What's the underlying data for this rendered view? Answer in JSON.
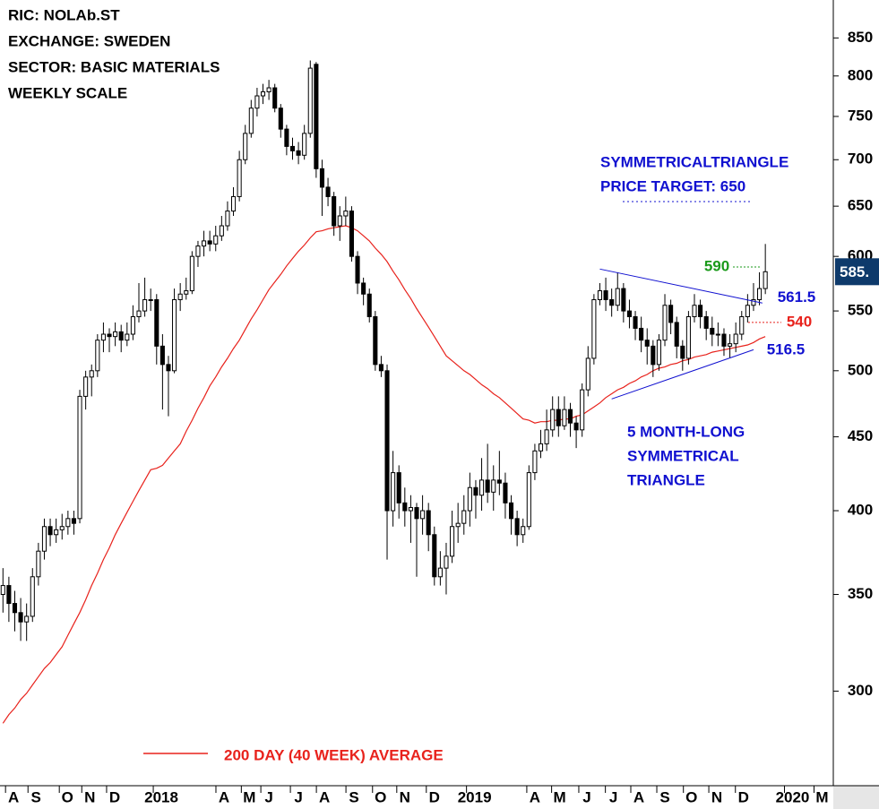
{
  "chart_data": {
    "type": "candlestick",
    "info": [
      "RIC: NOLAb.ST",
      "EXCHANGE: SWEDEN",
      "SECTOR: BASIC MATERIALS",
      "WEEKLY SCALE"
    ],
    "log_scale": true,
    "ylim": [
      258,
      903
    ],
    "yticks": [
      300,
      350,
      400,
      450,
      500,
      550,
      600,
      650,
      700,
      750,
      800,
      850
    ],
    "xlim": [
      -0.5,
      140.5
    ],
    "xticks": [
      {
        "value": 1.8,
        "label": "A"
      },
      {
        "value": 5.6,
        "label": "S"
      },
      {
        "value": 10.9,
        "label": "O"
      },
      {
        "value": 14.7,
        "label": "N"
      },
      {
        "value": 18.9,
        "label": "D"
      },
      {
        "value": 26.8,
        "label": "2018"
      },
      {
        "value": 37.4,
        "label": "A"
      },
      {
        "value": 41.7,
        "label": "M"
      },
      {
        "value": 45,
        "label": "J"
      },
      {
        "value": 50,
        "label": "J"
      },
      {
        "value": 54.4,
        "label": "A"
      },
      {
        "value": 59.4,
        "label": "S"
      },
      {
        "value": 63.9,
        "label": "O"
      },
      {
        "value": 68,
        "label": "N"
      },
      {
        "value": 73,
        "label": "D"
      },
      {
        "value": 79.8,
        "label": "2019"
      },
      {
        "value": 90,
        "label": "A"
      },
      {
        "value": 94.2,
        "label": "M"
      },
      {
        "value": 98.8,
        "label": "J"
      },
      {
        "value": 103.3,
        "label": "J"
      },
      {
        "value": 107.6,
        "label": "A"
      },
      {
        "value": 112,
        "label": "S"
      },
      {
        "value": 116.5,
        "label": "O"
      },
      {
        "value": 120.8,
        "label": "N"
      },
      {
        "value": 125.3,
        "label": "D"
      },
      {
        "value": 133.6,
        "label": "2020"
      },
      {
        "value": 138.6,
        "label": "M"
      }
    ],
    "ohlc": [
      [
        350,
        365,
        340,
        355
      ],
      [
        355,
        360,
        335,
        345
      ],
      [
        345,
        352,
        330,
        340
      ],
      [
        340,
        348,
        325,
        335
      ],
      [
        335,
        345,
        325,
        338
      ],
      [
        338,
        365,
        335,
        360
      ],
      [
        360,
        380,
        355,
        375
      ],
      [
        375,
        395,
        370,
        390
      ],
      [
        390,
        395,
        378,
        385
      ],
      [
        385,
        395,
        380,
        388
      ],
      [
        388,
        398,
        382,
        390
      ],
      [
        390,
        400,
        385,
        395
      ],
      [
        395,
        400,
        385,
        392
      ],
      [
        395,
        485,
        392,
        480
      ],
      [
        480,
        500,
        470,
        495
      ],
      [
        495,
        505,
        480,
        500
      ],
      [
        500,
        530,
        495,
        525
      ],
      [
        525,
        540,
        515,
        530
      ],
      [
        530,
        535,
        515,
        528
      ],
      [
        528,
        540,
        520,
        532
      ],
      [
        532,
        538,
        515,
        525
      ],
      [
        525,
        540,
        520,
        530
      ],
      [
        530,
        555,
        525,
        545
      ],
      [
        545,
        575,
        540,
        550
      ],
      [
        550,
        580,
        545,
        560
      ],
      [
        560,
        570,
        550,
        560
      ],
      [
        560,
        565,
        505,
        520
      ],
      [
        520,
        530,
        470,
        505
      ],
      [
        505,
        512,
        465,
        500
      ],
      [
        500,
        570,
        498,
        560
      ],
      [
        560,
        575,
        550,
        565
      ],
      [
        565,
        580,
        560,
        568
      ],
      [
        568,
        605,
        565,
        600
      ],
      [
        600,
        615,
        590,
        610
      ],
      [
        610,
        625,
        600,
        615
      ],
      [
        615,
        625,
        605,
        612
      ],
      [
        612,
        630,
        605,
        620
      ],
      [
        620,
        640,
        615,
        630
      ],
      [
        630,
        655,
        625,
        645
      ],
      [
        645,
        670,
        640,
        660
      ],
      [
        660,
        710,
        655,
        700
      ],
      [
        700,
        740,
        695,
        730
      ],
      [
        730,
        770,
        725,
        760
      ],
      [
        760,
        785,
        750,
        775
      ],
      [
        775,
        790,
        765,
        780
      ],
      [
        780,
        795,
        770,
        785
      ],
      [
        785,
        790,
        755,
        760
      ],
      [
        760,
        765,
        725,
        735
      ],
      [
        735,
        740,
        705,
        715
      ],
      [
        715,
        725,
        700,
        710
      ],
      [
        710,
        720,
        695,
        705
      ],
      [
        705,
        740,
        700,
        730
      ],
      [
        730,
        820,
        725,
        810
      ],
      [
        815,
        818,
        680,
        690
      ],
      [
        690,
        700,
        640,
        670
      ],
      [
        670,
        680,
        650,
        660
      ],
      [
        660,
        665,
        620,
        630
      ],
      [
        630,
        650,
        615,
        640
      ],
      [
        640,
        660,
        630,
        645
      ],
      [
        645,
        650,
        595,
        600
      ],
      [
        600,
        605,
        565,
        575
      ],
      [
        575,
        580,
        555,
        565
      ],
      [
        565,
        570,
        540,
        545
      ],
      [
        545,
        550,
        500,
        505
      ],
      [
        505,
        512,
        495,
        500
      ],
      [
        500,
        505,
        370,
        400
      ],
      [
        400,
        440,
        390,
        425
      ],
      [
        425,
        430,
        395,
        405
      ],
      [
        405,
        415,
        390,
        400
      ],
      [
        400,
        410,
        380,
        402
      ],
      [
        402,
        405,
        360,
        395
      ],
      [
        395,
        410,
        385,
        400
      ],
      [
        400,
        405,
        375,
        385
      ],
      [
        385,
        390,
        355,
        360
      ],
      [
        360,
        375,
        355,
        365
      ],
      [
        365,
        380,
        350,
        372
      ],
      [
        372,
        400,
        368,
        390
      ],
      [
        390,
        405,
        380,
        392
      ],
      [
        392,
        410,
        385,
        400
      ],
      [
        400,
        425,
        390,
        415
      ],
      [
        415,
        420,
        395,
        410
      ],
      [
        410,
        435,
        400,
        420
      ],
      [
        420,
        445,
        405,
        412
      ],
      [
        412,
        430,
        400,
        420
      ],
      [
        420,
        440,
        410,
        418
      ],
      [
        418,
        425,
        395,
        405
      ],
      [
        405,
        410,
        385,
        395
      ],
      [
        395,
        400,
        378,
        385
      ],
      [
        385,
        395,
        380,
        390
      ],
      [
        390,
        430,
        388,
        425
      ],
      [
        425,
        445,
        420,
        440
      ],
      [
        440,
        455,
        435,
        445
      ],
      [
        445,
        470,
        440,
        455
      ],
      [
        455,
        480,
        450,
        470
      ],
      [
        470,
        480,
        450,
        458
      ],
      [
        458,
        480,
        455,
        470
      ],
      [
        470,
        475,
        450,
        460
      ],
      [
        460,
        465,
        442,
        455
      ],
      [
        455,
        490,
        450,
        485
      ],
      [
        485,
        520,
        480,
        510
      ],
      [
        510,
        565,
        505,
        560
      ],
      [
        560,
        575,
        555,
        568
      ],
      [
        568,
        580,
        550,
        560
      ],
      [
        560,
        570,
        545,
        555
      ],
      [
        555,
        585,
        550,
        570
      ],
      [
        570,
        575,
        540,
        550
      ],
      [
        550,
        560,
        535,
        545
      ],
      [
        545,
        550,
        525,
        535
      ],
      [
        535,
        545,
        515,
        525
      ],
      [
        525,
        535,
        505,
        520
      ],
      [
        520,
        525,
        495,
        505
      ],
      [
        505,
        530,
        500,
        525
      ],
      [
        525,
        565,
        520,
        555
      ],
      [
        555,
        560,
        530,
        540
      ],
      [
        540,
        545,
        510,
        520
      ],
      [
        520,
        525,
        500,
        510
      ],
      [
        510,
        550,
        505,
        545
      ],
      [
        545,
        565,
        540,
        555
      ],
      [
        555,
        560,
        535,
        545
      ],
      [
        545,
        550,
        525,
        535
      ],
      [
        535,
        545,
        520,
        530
      ],
      [
        530,
        540,
        520,
        530
      ],
      [
        530,
        535,
        512,
        520
      ],
      [
        520,
        530,
        510,
        522
      ],
      [
        522,
        540,
        515,
        530
      ],
      [
        530,
        550,
        525,
        545
      ],
      [
        545,
        565,
        540,
        555
      ],
      [
        555,
        575,
        550,
        560
      ],
      [
        560,
        585,
        555,
        570
      ],
      [
        570,
        612,
        565,
        585.5
      ]
    ],
    "moving_average": {
      "name": "200 DAY (40 WEEK) AVERAGE",
      "color": "#e8221c",
      "values": [
        285,
        289,
        292,
        296,
        299,
        303,
        307,
        311,
        314,
        318,
        322,
        328,
        334,
        340,
        347,
        355,
        362,
        370,
        377,
        385,
        392,
        399,
        406,
        413,
        420,
        427,
        428,
        430,
        435,
        440,
        445,
        454,
        462,
        471,
        479,
        488,
        495,
        503,
        510,
        518,
        525,
        534,
        543,
        551,
        560,
        569,
        576,
        583,
        591,
        598,
        605,
        611,
        618,
        624,
        625,
        627,
        628,
        629,
        630,
        628,
        625,
        620,
        615,
        608,
        602,
        595,
        586,
        578,
        569,
        561,
        552,
        544,
        536,
        528,
        520,
        512,
        508,
        504,
        500,
        497,
        493,
        489,
        486,
        482,
        479,
        475,
        471,
        467,
        463,
        462,
        460,
        461,
        461,
        462,
        462,
        463,
        463,
        465,
        466,
        469,
        472,
        475,
        479,
        482,
        485,
        487,
        490,
        492,
        495,
        497,
        500,
        502,
        503,
        505,
        506,
        508,
        509,
        511,
        512,
        513,
        515,
        516,
        517,
        518,
        519,
        520,
        521,
        523,
        526,
        528
      ]
    },
    "trendlines": [
      {
        "x": [
          101,
          128.5
        ],
        "y": [
          588,
          557
        ],
        "color": "#1010d0"
      },
      {
        "x": [
          103,
          127
        ],
        "y": [
          478,
          517
        ],
        "color": "#1010d0"
      }
    ],
    "levels": [
      {
        "value": 590,
        "color": "#1a9a1a"
      },
      {
        "value": 561.5,
        "color": "#1010d0"
      },
      {
        "value": 540,
        "color": "#e8221c"
      },
      {
        "value": 516.5,
        "color": "#1010d0"
      }
    ],
    "target_note": [
      "SYMMETRICALTRIANGLE",
      "PRICE TARGET: 650"
    ],
    "pattern_note": [
      "5 MONTH-LONG",
      "SYMMETRICAL",
      "TRIANGLE"
    ],
    "last_price": {
      "value": 585.5,
      "label": "585."
    }
  }
}
